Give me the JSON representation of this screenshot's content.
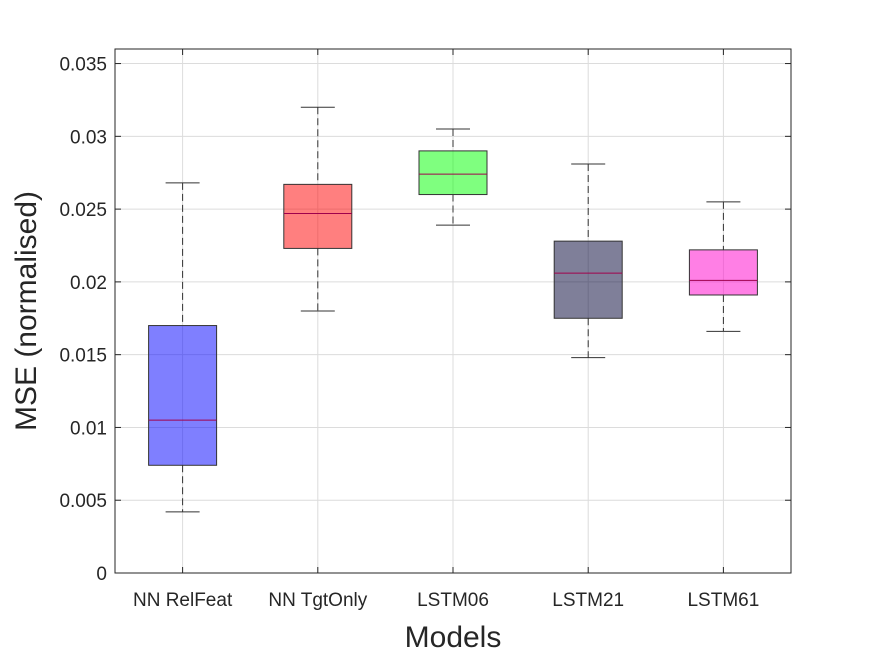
{
  "chart_data": {
    "type": "boxplot",
    "title": "",
    "xlabel": "Models",
    "ylabel": "MSE (normalised)",
    "ylim": [
      0,
      0.036
    ],
    "grid": true,
    "yticks": [
      0,
      0.005,
      0.01,
      0.015,
      0.02,
      0.025,
      0.03,
      0.035
    ],
    "ytick_labels": [
      "0",
      "0.005",
      "0.01",
      "0.015",
      "0.02",
      "0.025",
      "0.03",
      "0.035"
    ],
    "categories": [
      "NN RelFeat",
      "NN TgtOnly",
      "LSTM06",
      "LSTM21",
      "LSTM61"
    ],
    "boxes": [
      {
        "name": "NN RelFeat",
        "min": 0.0042,
        "q1": 0.0074,
        "median": 0.0105,
        "q3": 0.017,
        "max": 0.0268,
        "color": "#0000ff"
      },
      {
        "name": "NN TgtOnly",
        "min": 0.018,
        "q1": 0.0223,
        "median": 0.0247,
        "q3": 0.0267,
        "max": 0.032,
        "color": "#ff0000"
      },
      {
        "name": "LSTM06",
        "min": 0.0239,
        "q1": 0.026,
        "median": 0.0274,
        "q3": 0.029,
        "max": 0.0305,
        "color": "#00ff00"
      },
      {
        "name": "LSTM21",
        "min": 0.0148,
        "q1": 0.0175,
        "median": 0.0206,
        "q3": 0.0228,
        "max": 0.0281,
        "color": "#000033"
      },
      {
        "name": "LSTM61",
        "min": 0.0166,
        "q1": 0.0191,
        "median": 0.0201,
        "q3": 0.0222,
        "max": 0.0255,
        "color": "#ff00cc"
      }
    ],
    "median_color": "#a0004c"
  }
}
